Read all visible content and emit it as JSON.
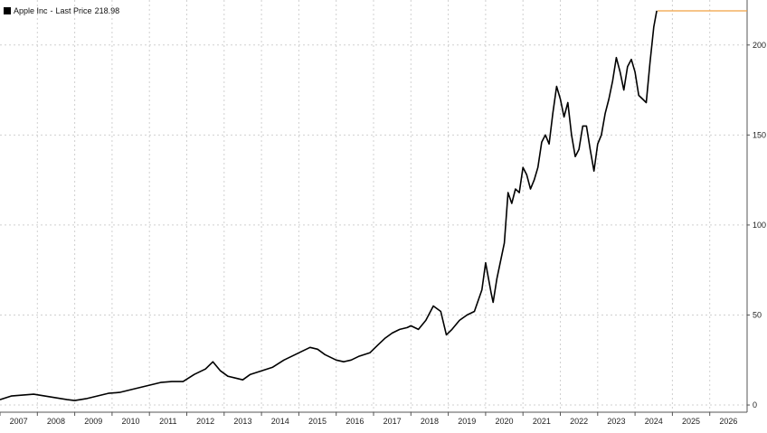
{
  "chart_data": {
    "type": "line",
    "title": "",
    "xlabel": "",
    "ylabel": "",
    "legend": {
      "position": "top-left",
      "series_name": "Apple Inc",
      "separator": "-",
      "value_label": "Last Price",
      "last_value": "218.98"
    },
    "x_range": [
      2007,
      2027
    ],
    "ylim": [
      -4,
      225
    ],
    "x_ticks": [
      "2007",
      "2008",
      "2009",
      "2010",
      "2011",
      "2012",
      "2013",
      "2014",
      "2015",
      "2016",
      "2017",
      "2018",
      "2019",
      "2020",
      "2021",
      "2022",
      "2023",
      "2024",
      "2025",
      "2026"
    ],
    "y_ticks": [
      0,
      50,
      100,
      150,
      200
    ],
    "grid": true,
    "colors": {
      "price_line": "#000000",
      "last_price_line": "#f0a040",
      "grid": "#d0d0d0",
      "legend_swatch": "#000000"
    },
    "series": [
      {
        "name": "Apple Inc",
        "x": [
          2007.0,
          2007.3,
          2007.6,
          2007.9,
          2008.2,
          2008.5,
          2008.8,
          2009.0,
          2009.3,
          2009.6,
          2009.9,
          2010.2,
          2010.5,
          2010.8,
          2011.0,
          2011.3,
          2011.6,
          2011.9,
          2012.2,
          2012.5,
          2012.7,
          2012.9,
          2013.1,
          2013.3,
          2013.5,
          2013.7,
          2014.0,
          2014.3,
          2014.6,
          2014.9,
          2015.1,
          2015.3,
          2015.5,
          2015.7,
          2016.0,
          2016.2,
          2016.4,
          2016.6,
          2016.9,
          2017.1,
          2017.3,
          2017.5,
          2017.7,
          2017.9,
          2018.0,
          2018.2,
          2018.4,
          2018.6,
          2018.8,
          2018.95,
          2019.1,
          2019.3,
          2019.5,
          2019.7,
          2019.9,
          2020.0,
          2020.15,
          2020.2,
          2020.3,
          2020.5,
          2020.6,
          2020.7,
          2020.8,
          2020.9,
          2021.0,
          2021.1,
          2021.2,
          2021.3,
          2021.4,
          2021.5,
          2021.6,
          2021.7,
          2021.8,
          2021.9,
          2022.0,
          2022.1,
          2022.2,
          2022.3,
          2022.4,
          2022.5,
          2022.6,
          2022.7,
          2022.8,
          2022.9,
          2023.0,
          2023.1,
          2023.2,
          2023.3,
          2023.4,
          2023.5,
          2023.6,
          2023.7,
          2023.8,
          2023.9,
          2024.0,
          2024.1,
          2024.2,
          2024.3,
          2024.4,
          2024.5,
          2024.58
        ],
        "values": [
          3,
          5,
          5.5,
          6,
          5,
          4,
          3,
          2.5,
          3.5,
          5,
          6.5,
          7,
          8.5,
          10,
          11,
          12.5,
          13,
          13,
          17,
          20,
          24,
          19,
          16,
          15,
          14,
          17,
          19,
          21,
          25,
          28,
          30,
          32,
          31,
          28,
          25,
          24,
          25,
          27,
          29,
          33,
          37,
          40,
          42,
          43,
          44,
          42,
          47,
          55,
          52,
          39,
          42,
          47,
          50,
          52,
          64,
          79,
          62,
          57,
          70,
          90,
          118,
          112,
          120,
          118,
          132,
          128,
          120,
          125,
          132,
          146,
          150,
          145,
          162,
          177,
          170,
          160,
          168,
          150,
          138,
          142,
          155,
          155,
          142,
          130,
          145,
          150,
          162,
          170,
          180,
          193,
          185,
          175,
          188,
          192,
          185,
          172,
          170,
          168,
          190,
          210,
          219
        ]
      }
    ],
    "last_price": {
      "value": 218.98,
      "x_start": 2024.6,
      "x_end": 2027
    }
  }
}
